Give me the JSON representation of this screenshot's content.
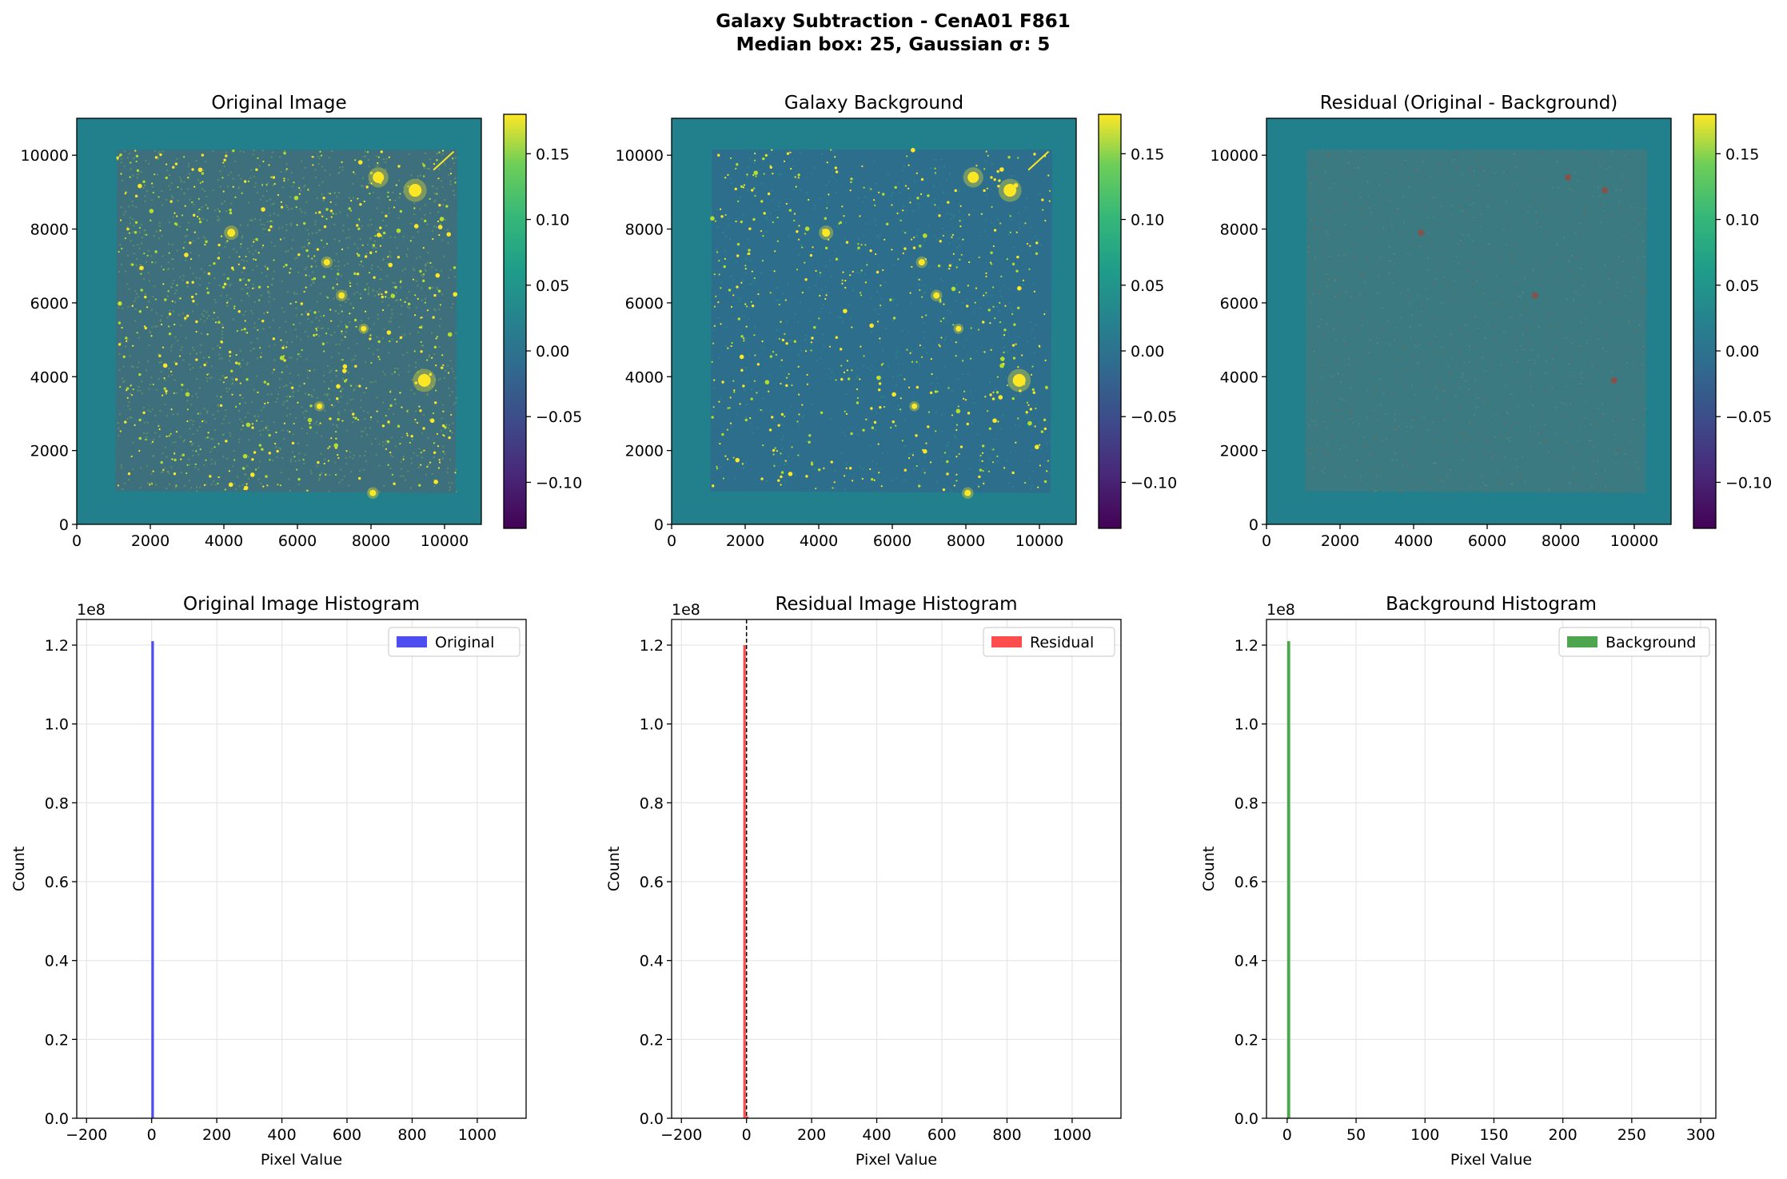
{
  "figure": {
    "title_line1": "Galaxy Subtraction - CenA01 F861",
    "title_line2": "Median box: 25, Gaussian σ: 5"
  },
  "chart_data": [
    {
      "type": "heatmap",
      "title": "Original Image",
      "xlim": [
        0,
        11000
      ],
      "ylim": [
        0,
        11000
      ],
      "xticks": [
        0,
        2000,
        4000,
        6000,
        8000,
        10000
      ],
      "yticks": [
        0,
        2000,
        4000,
        6000,
        8000,
        10000
      ],
      "xtick_labels": [
        "0",
        "2000",
        "4000",
        "6000",
        "8000",
        "10000"
      ],
      "ytick_labels": [
        "0",
        "2000",
        "4000",
        "6000",
        "8000",
        "10000"
      ],
      "colormap": "viridis",
      "colorbar_range": [
        -0.135,
        0.18
      ],
      "colorbar_ticks": [
        -0.1,
        -0.05,
        0.0,
        0.05,
        0.1,
        0.15
      ],
      "colorbar_tick_labels": [
        "−0.10",
        "−0.05",
        "0.00",
        "0.05",
        "0.10",
        "0.15"
      ],
      "style": "original"
    },
    {
      "type": "heatmap",
      "title": "Galaxy Background",
      "xlim": [
        0,
        11000
      ],
      "ylim": [
        0,
        11000
      ],
      "xticks": [
        0,
        2000,
        4000,
        6000,
        8000,
        10000
      ],
      "yticks": [
        0,
        2000,
        4000,
        6000,
        8000,
        10000
      ],
      "xtick_labels": [
        "0",
        "2000",
        "4000",
        "6000",
        "8000",
        "10000"
      ],
      "ytick_labels": [
        "0",
        "2000",
        "4000",
        "6000",
        "8000",
        "10000"
      ],
      "colormap": "viridis",
      "colorbar_range": [
        -0.135,
        0.18
      ],
      "colorbar_ticks": [
        -0.1,
        -0.05,
        0.0,
        0.05,
        0.1,
        0.15
      ],
      "colorbar_tick_labels": [
        "−0.10",
        "−0.05",
        "0.00",
        "0.05",
        "0.10",
        "0.15"
      ],
      "style": "background"
    },
    {
      "type": "heatmap",
      "title": "Residual (Original - Background)",
      "xlim": [
        0,
        11000
      ],
      "ylim": [
        0,
        11000
      ],
      "xticks": [
        0,
        2000,
        4000,
        6000,
        8000,
        10000
      ],
      "yticks": [
        0,
        2000,
        4000,
        6000,
        8000,
        10000
      ],
      "xtick_labels": [
        "0",
        "2000",
        "4000",
        "6000",
        "8000",
        "10000"
      ],
      "ytick_labels": [
        "0",
        "2000",
        "4000",
        "6000",
        "8000",
        "10000"
      ],
      "colormap": "viridis",
      "colorbar_range": [
        -0.135,
        0.18
      ],
      "colorbar_ticks": [
        -0.1,
        -0.05,
        0.0,
        0.05,
        0.1,
        0.15
      ],
      "colorbar_tick_labels": [
        "−0.10",
        "−0.05",
        "0.00",
        "0.05",
        "0.10",
        "0.15"
      ],
      "style": "residual"
    },
    {
      "type": "bar",
      "title": "Original Image Histogram",
      "xlabel": "Pixel Value",
      "ylabel": "Count",
      "y_offset_label": "1e8",
      "xlim": [
        -230,
        1150
      ],
      "ylim": [
        0,
        1.265
      ],
      "xticks": [
        -200,
        0,
        200,
        400,
        600,
        800,
        1000
      ],
      "xtick_labels": [
        "−200",
        "0",
        "200",
        "400",
        "600",
        "800",
        "1000"
      ],
      "yticks": [
        0.0,
        0.2,
        0.4,
        0.6,
        0.8,
        1.0,
        1.2
      ],
      "ytick_labels": [
        "0.0",
        "0.2",
        "0.4",
        "0.6",
        "0.8",
        "1.0",
        "1.2"
      ],
      "grid": true,
      "legend": "top-right",
      "bars": [
        {
          "x0": -1.0,
          "x1": 7.0,
          "height": 1.21
        }
      ],
      "series": [
        {
          "name": "Original",
          "color": "#4d4df2"
        }
      ],
      "dashed_line_x": null
    },
    {
      "type": "bar",
      "title": "Residual Image Histogram",
      "xlabel": "Pixel Value",
      "ylabel": "Count",
      "y_offset_label": "1e8",
      "xlim": [
        -230,
        1150
      ],
      "ylim": [
        0,
        1.265
      ],
      "xticks": [
        -200,
        0,
        200,
        400,
        600,
        800,
        1000
      ],
      "xtick_labels": [
        "−200",
        "0",
        "200",
        "400",
        "600",
        "800",
        "1000"
      ],
      "yticks": [
        0.0,
        0.2,
        0.4,
        0.6,
        0.8,
        1.0,
        1.2
      ],
      "ytick_labels": [
        "0.0",
        "0.2",
        "0.4",
        "0.6",
        "0.8",
        "1.0",
        "1.2"
      ],
      "grid": true,
      "legend": "top-right",
      "bars": [
        {
          "x0": -10.0,
          "x1": -2.0,
          "height": 1.2
        },
        {
          "x0": -2.0,
          "x1": 6.0,
          "height": 0.005
        }
      ],
      "series": [
        {
          "name": "Residual",
          "color": "#ff4d4d"
        }
      ],
      "dashed_line_x": 0
    },
    {
      "type": "bar",
      "title": "Background Histogram",
      "xlabel": "Pixel Value",
      "ylabel": "Count",
      "y_offset_label": "1e8",
      "xlim": [
        -15,
        311
      ],
      "ylim": [
        0,
        1.265
      ],
      "xticks": [
        0,
        50,
        100,
        150,
        200,
        250,
        300
      ],
      "xtick_labels": [
        "0",
        "50",
        "100",
        "150",
        "200",
        "250",
        "300"
      ],
      "yticks": [
        0.0,
        0.2,
        0.4,
        0.6,
        0.8,
        1.0,
        1.2
      ],
      "ytick_labels": [
        "0.0",
        "0.2",
        "0.4",
        "0.6",
        "0.8",
        "1.0",
        "1.2"
      ],
      "grid": true,
      "legend": "top-right",
      "bars": [
        {
          "x0": 0.0,
          "x1": 2.2,
          "height": 1.21
        }
      ],
      "series": [
        {
          "name": "Background",
          "color": "#4da64d"
        }
      ],
      "dashed_line_x": null
    }
  ],
  "colors": {
    "pad_color": "#21808c",
    "frame_color": "#000000",
    "grid_color": "#e6e6e6"
  }
}
